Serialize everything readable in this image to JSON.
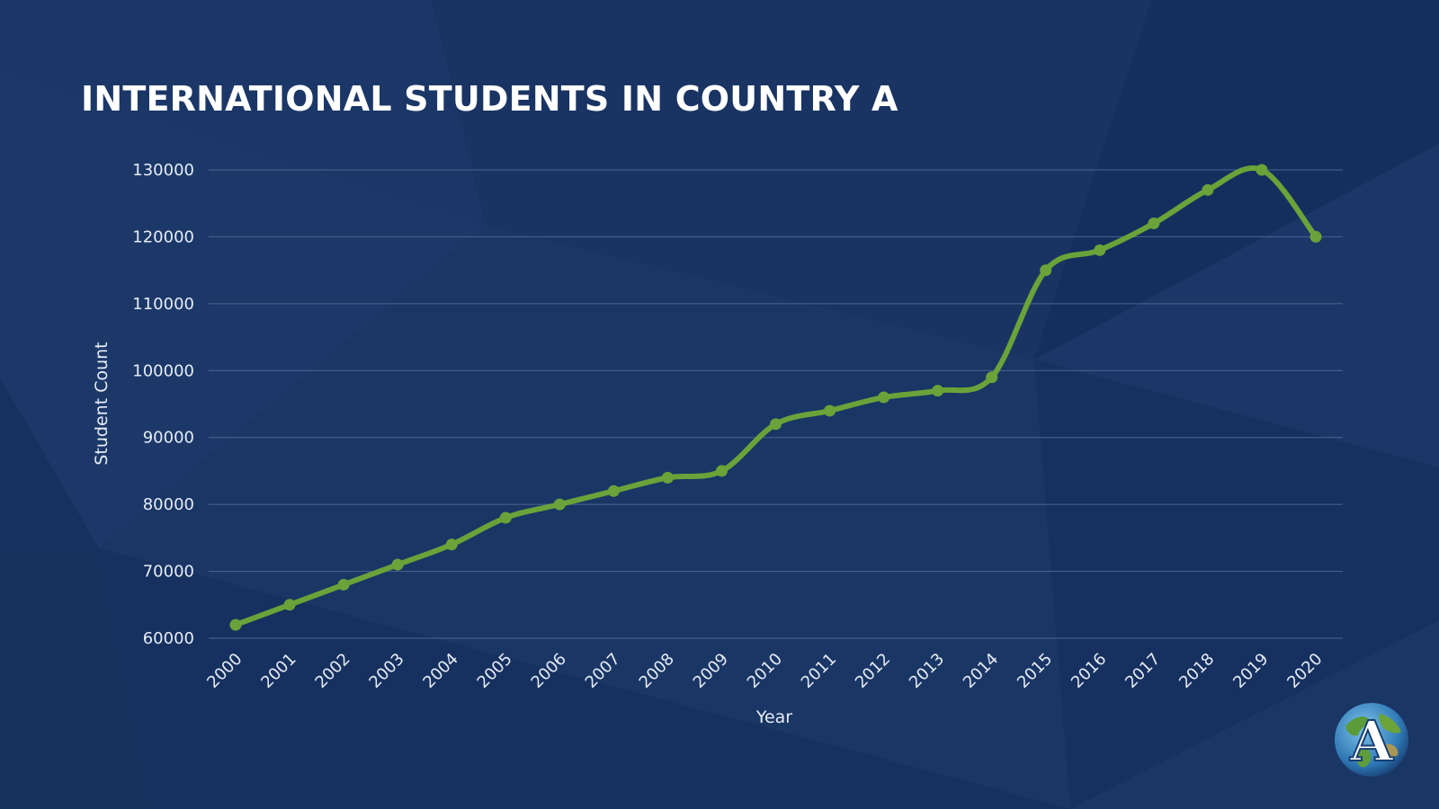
{
  "chart_data": {
    "type": "line",
    "title": "INTERNATIONAL STUDENTS IN COUNTRY A",
    "xlabel": "Year",
    "ylabel": "Student Count",
    "x": [
      "2000",
      "2001",
      "2002",
      "2003",
      "2004",
      "2005",
      "2006",
      "2007",
      "2008",
      "2009",
      "2010",
      "2011",
      "2012",
      "2013",
      "2014",
      "2015",
      "2016",
      "2017",
      "2018",
      "2019",
      "2020"
    ],
    "series": [
      {
        "values": [
          62000,
          65000,
          68000,
          71000,
          74000,
          78000,
          80000,
          82000,
          84000,
          85000,
          92000,
          94000,
          96000,
          97000,
          99000,
          115000,
          118000,
          122000,
          127000,
          130000,
          120000
        ]
      }
    ],
    "ylim": [
      60000,
      130000
    ],
    "yticks": [
      60000,
      70000,
      80000,
      90000,
      100000,
      110000,
      120000,
      130000
    ],
    "grid": true,
    "legend": "none",
    "colors": {
      "line": "#6aa339",
      "grid": "#4d6592",
      "text": "#e6ecf5",
      "background": "#16305f"
    }
  },
  "logo": {
    "letter": "A",
    "icon": "globe-logo-icon"
  }
}
